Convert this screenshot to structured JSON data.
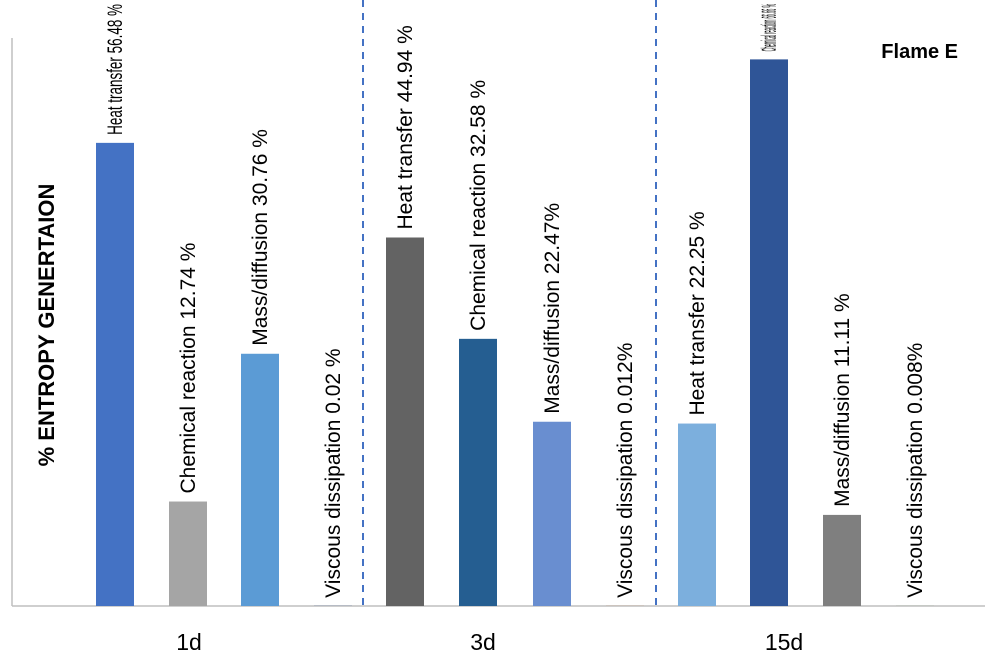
{
  "chart_data": {
    "type": "bar",
    "title": "Flame E",
    "ylabel": "% ENTROPY GENERTAION",
    "xlabel": "",
    "ylim": [
      0,
      75
    ],
    "grid": false,
    "legend": "none",
    "groups": [
      {
        "category": "1d",
        "bars": [
          {
            "value": 56.48,
            "label": "Heat transfer  56.48 %",
            "color": "#4472C4"
          },
          {
            "value": 12.74,
            "label": "Chemical reaction 12.74 %",
            "color": "#A5A5A5"
          },
          {
            "value": 30.76,
            "label": "Mass/diffusion  30.76 %",
            "color": "#5B9BD5"
          },
          {
            "value": 0.02,
            "label": "Viscous dissipation 0.02 %",
            "color": "#264478"
          }
        ]
      },
      {
        "category": "3d",
        "bars": [
          {
            "value": 44.94,
            "label": "Heat transfer 44.94 %",
            "color": "#636363"
          },
          {
            "value": 32.58,
            "label": "Chemical reaction  32.58 %",
            "color": "#255E91"
          },
          {
            "value": 22.47,
            "label": "Mass/diffusion  22.47%",
            "color": "#698ED0"
          },
          {
            "value": 0.012,
            "label": "Viscous dissipation  0.012%",
            "color": "#9E480E"
          }
        ]
      },
      {
        "category": "15d",
        "bars": [
          {
            "value": 22.25,
            "label": "Heat transfer  22.25 %",
            "color": "#7CAFDD"
          },
          {
            "value": 66.66,
            "label": "Chemical reaction 66.66 %",
            "color": "#2F5597"
          },
          {
            "value": 11.11,
            "label": "Mass/diffusion  11.11 %",
            "color": "#7F7F7F"
          },
          {
            "value": 0.008,
            "label": "Viscous dissipation  0.008%",
            "color": "#43682B"
          }
        ]
      }
    ]
  }
}
